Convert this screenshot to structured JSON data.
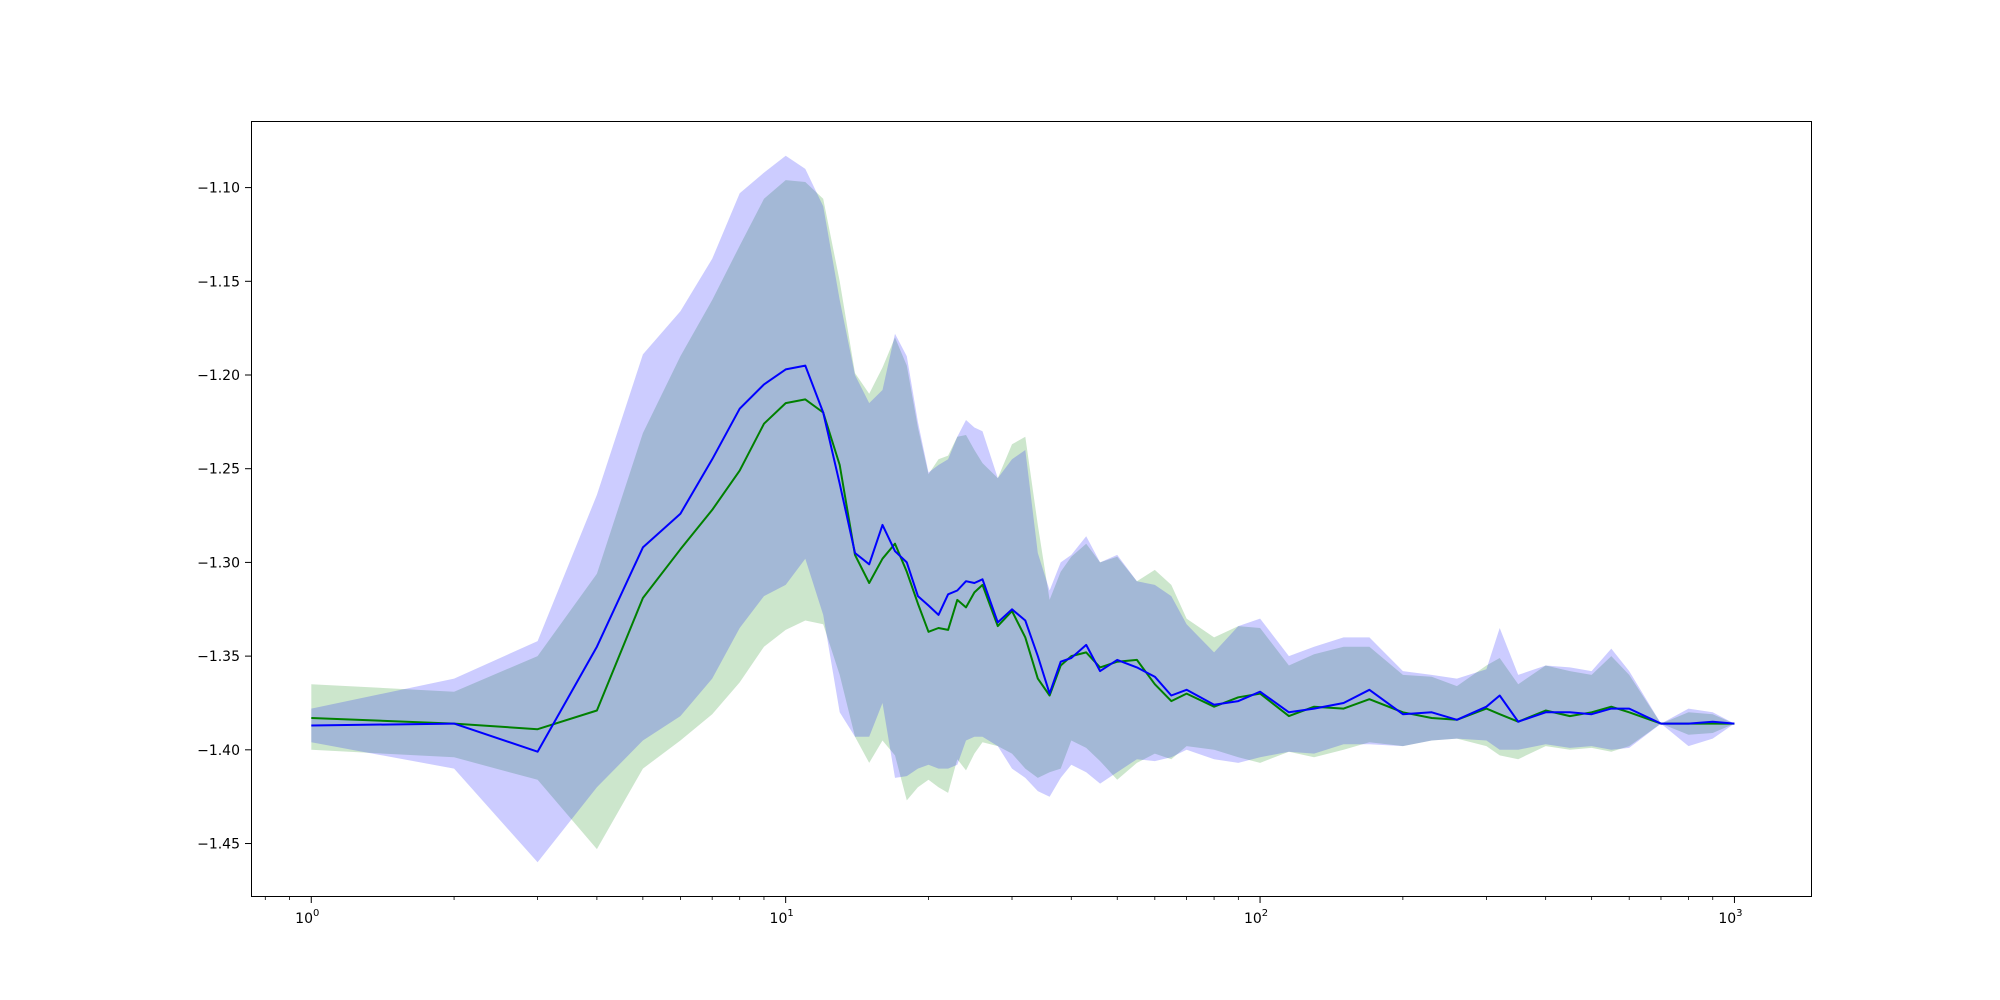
{
  "chart_data": {
    "type": "line",
    "xscale": "log",
    "xlim": [
      0.75,
      1450
    ],
    "ylim": [
      -1.478,
      -1.065
    ],
    "grid": false,
    "xticks": [
      {
        "value": 1,
        "base": "10",
        "exp": "0"
      },
      {
        "value": 10,
        "base": "10",
        "exp": "1"
      },
      {
        "value": 100,
        "base": "10",
        "exp": "2"
      },
      {
        "value": 1000,
        "base": "10",
        "exp": "3"
      }
    ],
    "yticks": [
      {
        "value": -1.1,
        "label": "−1.10"
      },
      {
        "value": -1.15,
        "label": "−1.15"
      },
      {
        "value": -1.2,
        "label": "−1.20"
      },
      {
        "value": -1.25,
        "label": "−1.25"
      },
      {
        "value": -1.3,
        "label": "−1.30"
      },
      {
        "value": -1.35,
        "label": "−1.35"
      },
      {
        "value": -1.4,
        "label": "−1.40"
      },
      {
        "value": -1.45,
        "label": "−1.45"
      }
    ],
    "series": [
      {
        "color": "#008000",
        "band_color": "#008000",
        "band_opacity": 0.2,
        "x": [
          1,
          2,
          3,
          4,
          5,
          6,
          7,
          8,
          9,
          10,
          11,
          12,
          13,
          14,
          15,
          16,
          17,
          18,
          19,
          20,
          21,
          22,
          23,
          24,
          25,
          26,
          28,
          30,
          32,
          34,
          36,
          38,
          40,
          43,
          46,
          50,
          55,
          60,
          65,
          70,
          80,
          90,
          100,
          115,
          130,
          150,
          170,
          200,
          230,
          260,
          300,
          320,
          350,
          400,
          450,
          500,
          550,
          600,
          700,
          800,
          900,
          1000
        ],
        "y": [
          -1.383,
          -1.386,
          -1.389,
          -1.379,
          -1.319,
          -1.293,
          -1.272,
          -1.251,
          -1.226,
          -1.215,
          -1.213,
          -1.22,
          -1.248,
          -1.296,
          -1.311,
          -1.298,
          -1.29,
          -1.305,
          -1.322,
          -1.337,
          -1.335,
          -1.336,
          -1.32,
          -1.324,
          -1.316,
          -1.312,
          -1.334,
          -1.326,
          -1.34,
          -1.362,
          -1.371,
          -1.355,
          -1.35,
          -1.348,
          -1.356,
          -1.353,
          -1.352,
          -1.365,
          -1.374,
          -1.37,
          -1.377,
          -1.372,
          -1.37,
          -1.382,
          -1.377,
          -1.378,
          -1.373,
          -1.38,
          -1.383,
          -1.384,
          -1.378,
          -1.381,
          -1.385,
          -1.379,
          -1.382,
          -1.38,
          -1.377,
          -1.38,
          -1.386,
          -1.386,
          -1.386,
          -1.386
        ],
        "lower": [
          -1.4,
          -1.404,
          -1.416,
          -1.453,
          -1.41,
          -1.395,
          -1.381,
          -1.364,
          -1.345,
          -1.336,
          -1.331,
          -1.333,
          -1.36,
          -1.393,
          -1.407,
          -1.395,
          -1.403,
          -1.427,
          -1.42,
          -1.416,
          -1.42,
          -1.423,
          -1.405,
          -1.411,
          -1.402,
          -1.396,
          -1.398,
          -1.402,
          -1.41,
          -1.415,
          -1.412,
          -1.41,
          -1.395,
          -1.399,
          -1.406,
          -1.416,
          -1.407,
          -1.402,
          -1.405,
          -1.398,
          -1.4,
          -1.404,
          -1.407,
          -1.401,
          -1.404,
          -1.4,
          -1.396,
          -1.398,
          -1.395,
          -1.394,
          -1.398,
          -1.403,
          -1.405,
          -1.398,
          -1.4,
          -1.399,
          -1.401,
          -1.398,
          -1.386,
          -1.392,
          -1.391,
          -1.386
        ],
        "upper": [
          -1.365,
          -1.369,
          -1.35,
          -1.306,
          -1.231,
          -1.19,
          -1.16,
          -1.131,
          -1.106,
          -1.096,
          -1.097,
          -1.106,
          -1.15,
          -1.199,
          -1.21,
          -1.196,
          -1.18,
          -1.195,
          -1.228,
          -1.253,
          -1.245,
          -1.243,
          -1.233,
          -1.232,
          -1.24,
          -1.247,
          -1.255,
          -1.237,
          -1.233,
          -1.28,
          -1.32,
          -1.305,
          -1.297,
          -1.29,
          -1.3,
          -1.297,
          -1.31,
          -1.304,
          -1.312,
          -1.33,
          -1.34,
          -1.334,
          -1.335,
          -1.355,
          -1.349,
          -1.345,
          -1.345,
          -1.36,
          -1.361,
          -1.366,
          -1.355,
          -1.351,
          -1.365,
          -1.355,
          -1.358,
          -1.36,
          -1.35,
          -1.36,
          -1.386,
          -1.38,
          -1.381,
          -1.386
        ]
      },
      {
        "color": "#0000ff",
        "band_color": "#0000ff",
        "band_opacity": 0.2,
        "x": [
          1,
          2,
          3,
          4,
          5,
          6,
          7,
          8,
          9,
          10,
          11,
          12,
          13,
          14,
          15,
          16,
          17,
          18,
          19,
          20,
          21,
          22,
          23,
          24,
          25,
          26,
          28,
          30,
          32,
          34,
          36,
          38,
          40,
          43,
          46,
          50,
          55,
          60,
          65,
          70,
          80,
          90,
          100,
          115,
          130,
          150,
          170,
          200,
          230,
          260,
          300,
          320,
          350,
          400,
          450,
          500,
          550,
          600,
          700,
          800,
          900,
          1000
        ],
        "y": [
          -1.387,
          -1.386,
          -1.401,
          -1.345,
          -1.292,
          -1.274,
          -1.245,
          -1.218,
          -1.205,
          -1.197,
          -1.195,
          -1.22,
          -1.258,
          -1.295,
          -1.301,
          -1.28,
          -1.294,
          -1.3,
          -1.318,
          -1.323,
          -1.328,
          -1.317,
          -1.315,
          -1.31,
          -1.311,
          -1.309,
          -1.332,
          -1.325,
          -1.331,
          -1.35,
          -1.37,
          -1.353,
          -1.351,
          -1.344,
          -1.358,
          -1.352,
          -1.356,
          -1.361,
          -1.371,
          -1.368,
          -1.376,
          -1.374,
          -1.369,
          -1.38,
          -1.378,
          -1.375,
          -1.368,
          -1.381,
          -1.38,
          -1.384,
          -1.377,
          -1.371,
          -1.385,
          -1.38,
          -1.38,
          -1.381,
          -1.378,
          -1.378,
          -1.386,
          -1.386,
          -1.385,
          -1.386
        ],
        "lower": [
          -1.396,
          -1.41,
          -1.46,
          -1.42,
          -1.395,
          -1.382,
          -1.362,
          -1.335,
          -1.318,
          -1.312,
          -1.298,
          -1.328,
          -1.38,
          -1.393,
          -1.393,
          -1.375,
          -1.415,
          -1.414,
          -1.41,
          -1.408,
          -1.41,
          -1.41,
          -1.408,
          -1.395,
          -1.393,
          -1.393,
          -1.398,
          -1.41,
          -1.415,
          -1.422,
          -1.425,
          -1.415,
          -1.408,
          -1.412,
          -1.418,
          -1.412,
          -1.405,
          -1.406,
          -1.404,
          -1.4,
          -1.405,
          -1.407,
          -1.404,
          -1.401,
          -1.402,
          -1.397,
          -1.397,
          -1.398,
          -1.395,
          -1.394,
          -1.395,
          -1.4,
          -1.4,
          -1.397,
          -1.399,
          -1.398,
          -1.4,
          -1.399,
          -1.386,
          -1.398,
          -1.394,
          -1.386
        ],
        "upper": [
          -1.378,
          -1.362,
          -1.342,
          -1.264,
          -1.189,
          -1.166,
          -1.138,
          -1.103,
          -1.092,
          -1.083,
          -1.09,
          -1.11,
          -1.16,
          -1.2,
          -1.215,
          -1.208,
          -1.178,
          -1.19,
          -1.225,
          -1.252,
          -1.248,
          -1.245,
          -1.233,
          -1.224,
          -1.228,
          -1.23,
          -1.255,
          -1.245,
          -1.24,
          -1.295,
          -1.315,
          -1.3,
          -1.296,
          -1.286,
          -1.3,
          -1.296,
          -1.31,
          -1.312,
          -1.318,
          -1.333,
          -1.348,
          -1.334,
          -1.33,
          -1.35,
          -1.345,
          -1.34,
          -1.34,
          -1.358,
          -1.36,
          -1.362,
          -1.357,
          -1.335,
          -1.36,
          -1.355,
          -1.356,
          -1.358,
          -1.346,
          -1.358,
          -1.386,
          -1.378,
          -1.38,
          -1.386
        ]
      }
    ]
  }
}
